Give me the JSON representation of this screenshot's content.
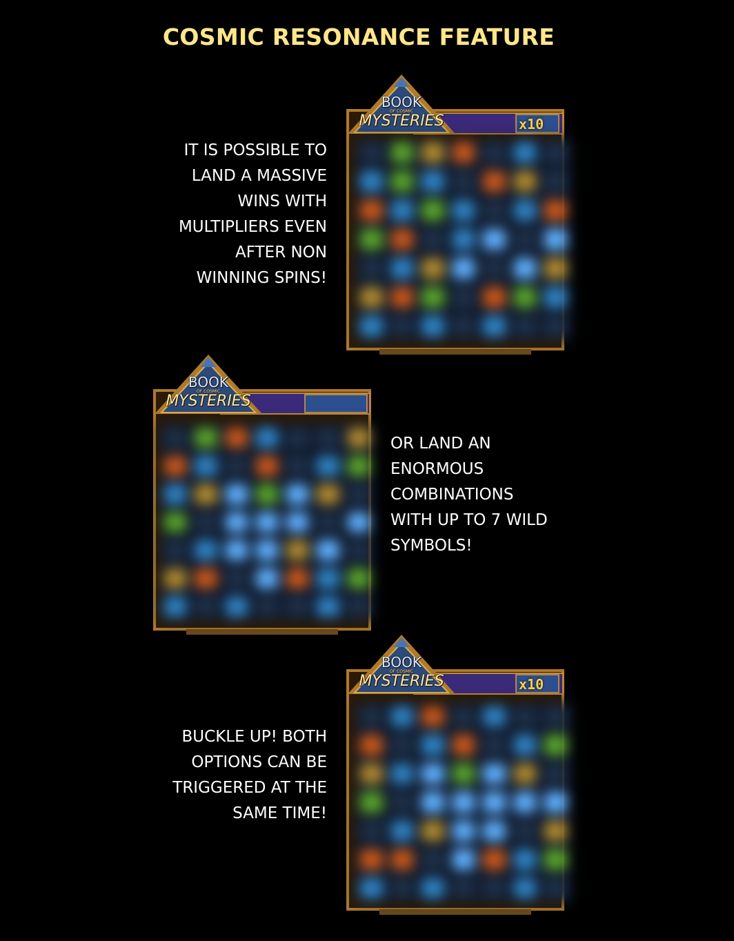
{
  "title": "COSMIC RESONANCE FEATURE",
  "sections": [
    {
      "text": "IT IS POSSIBLE TO\nLAND A MASSIVE\nWINS WITH\nMULTIPLIERS EVEN\nAFTER NON\nWINNING SPINS!",
      "game_logo": {
        "line1": "BOOK",
        "line2": "OF COSMIC",
        "line3": "MYSTERIES"
      },
      "multiplier": "x10"
    },
    {
      "text": "OR LAND AN\nENORMOUS\nCOMBINATIONS\nWITH UP TO 7 WILD\nSYMBOLS!",
      "game_logo": {
        "line1": "BOOK",
        "line2": "OF COSMIC",
        "line3": "MYSTERIES"
      }
    },
    {
      "text": "BUCKLE UP! BOTH\nOPTIONS CAN BE\nTRIGGERED AT THE\nSAME TIME!",
      "game_logo": {
        "line1": "BOOK",
        "line2": "OF COSMIC",
        "line3": "MYSTERIES"
      },
      "multiplier": "x10"
    }
  ],
  "colors": {
    "title": "#ffe68a",
    "frame_gold": "#b07a2a",
    "frame_purple": "#3b2a7a",
    "logo_teal": "#2c4a7a"
  }
}
